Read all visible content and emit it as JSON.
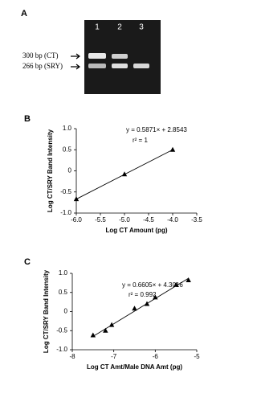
{
  "gel": {
    "panel_label": "A",
    "lanes": [
      "1",
      "2",
      "3"
    ],
    "band_labels": [
      "300 bp (CT)",
      "266 bp (SRY)"
    ]
  },
  "chart_data": [
    {
      "type": "scatter",
      "panel_label": "B",
      "x_label": "Log CT Amount (pg)",
      "y_label": "Log CT/SRY Band Intensity",
      "annotations": [
        "y = 0.5871× + 2.8543",
        "r² = 1"
      ],
      "xlim": [
        -6,
        -3.5
      ],
      "xticks": [
        {
          "value": -6,
          "label": "-6.0"
        },
        -5.5,
        {
          "value": -5,
          "label": "-5.0"
        },
        -4.5,
        {
          "value": -4,
          "label": "-4.0"
        },
        -3.5
      ],
      "ylim": [
        -1,
        1
      ],
      "yticks": [
        {
          "value": -1,
          "label": "-1.0"
        },
        -0.5,
        0,
        0.5,
        {
          "value": 1,
          "label": "1.0"
        }
      ],
      "series": [
        {
          "type": "scatter",
          "color": "#000000",
          "x": [
            -6,
            -5,
            -4
          ],
          "values": [
            -0.67,
            -0.08,
            0.5
          ]
        },
        {
          "type": "line",
          "color": "#000000",
          "x": [
            -6,
            -4
          ],
          "values": [
            -0.67,
            0.5
          ]
        }
      ]
    },
    {
      "type": "scatter",
      "panel_label": "C",
      "x_label": "Log CT Amt/Male DNA Amt (pg)",
      "y_label": "Log CT/SRY Band Intensity",
      "annotations": [
        "y = 0.6605× + 4.3016",
        "r² = 0.992"
      ],
      "xlim": [
        -8,
        -5
      ],
      "xticks": [
        -8,
        -7,
        -6,
        -5
      ],
      "ylim": [
        -1,
        1
      ],
      "yticks": [
        {
          "value": -1,
          "label": "-1.0"
        },
        -0.5,
        0,
        0.5,
        {
          "value": 1,
          "label": "1.0"
        }
      ],
      "series": [
        {
          "type": "scatter",
          "color": "#000000",
          "x": [
            -7.5,
            -7.2,
            -7.05,
            -6.5,
            -6.2,
            -6,
            -5.5,
            -5.2
          ],
          "values": [
            -0.62,
            -0.5,
            -0.35,
            0.08,
            0.2,
            0.37,
            0.7,
            0.82
          ]
        },
        {
          "type": "line",
          "color": "#000000",
          "x": [
            -7.5,
            -5.2
          ],
          "values": [
            -0.65,
            0.87
          ]
        }
      ]
    }
  ]
}
